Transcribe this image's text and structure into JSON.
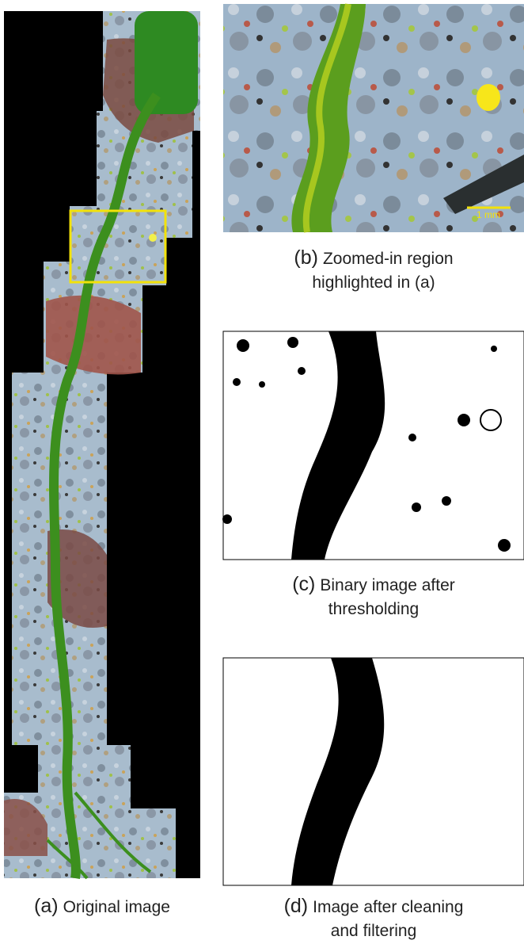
{
  "panels": [
    {
      "label": "(a)",
      "caption": [
        "Original image"
      ]
    },
    {
      "label": "(b)",
      "caption": [
        "Zoomed-in region",
        "highlighted in (a)"
      ]
    },
    {
      "label": "(c)",
      "caption": [
        "Binary image after",
        "thresholding"
      ]
    },
    {
      "label": "(d)",
      "caption": [
        "Image after cleaning",
        "and filtering"
      ]
    }
  ],
  "scale_bar": "1 mm"
}
